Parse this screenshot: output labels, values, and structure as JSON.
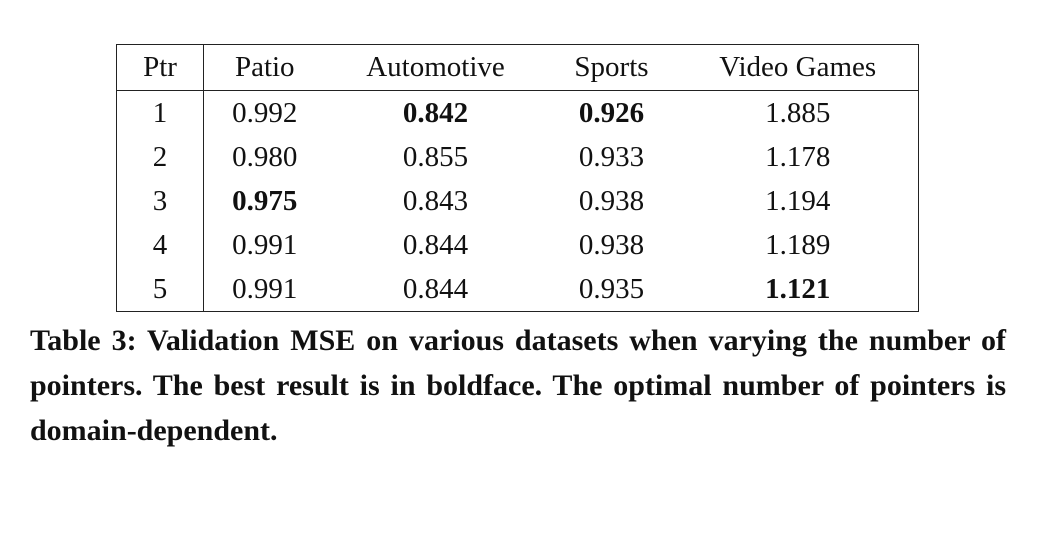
{
  "table": {
    "header": [
      "Ptr",
      "Patio",
      "Automotive",
      "Sports",
      "Video Games"
    ],
    "rows": [
      [
        "1",
        "0.992",
        "0.842",
        "0.926",
        "1.885"
      ],
      [
        "2",
        "0.980",
        "0.855",
        "0.933",
        "1.178"
      ],
      [
        "3",
        "0.975",
        "0.843",
        "0.938",
        "1.194"
      ],
      [
        "4",
        "0.991",
        "0.844",
        "0.938",
        "1.189"
      ],
      [
        "5",
        "0.991",
        "0.844",
        "0.935",
        "1.121"
      ]
    ],
    "bold_cells": [
      [
        0,
        2
      ],
      [
        0,
        3
      ],
      [
        2,
        1
      ],
      [
        4,
        4
      ]
    ]
  },
  "caption": "Table 3: Validation MSE on various datasets when varying the number of pointers. The best result is in boldface. The optimal number of pointers is domain-dependent."
}
